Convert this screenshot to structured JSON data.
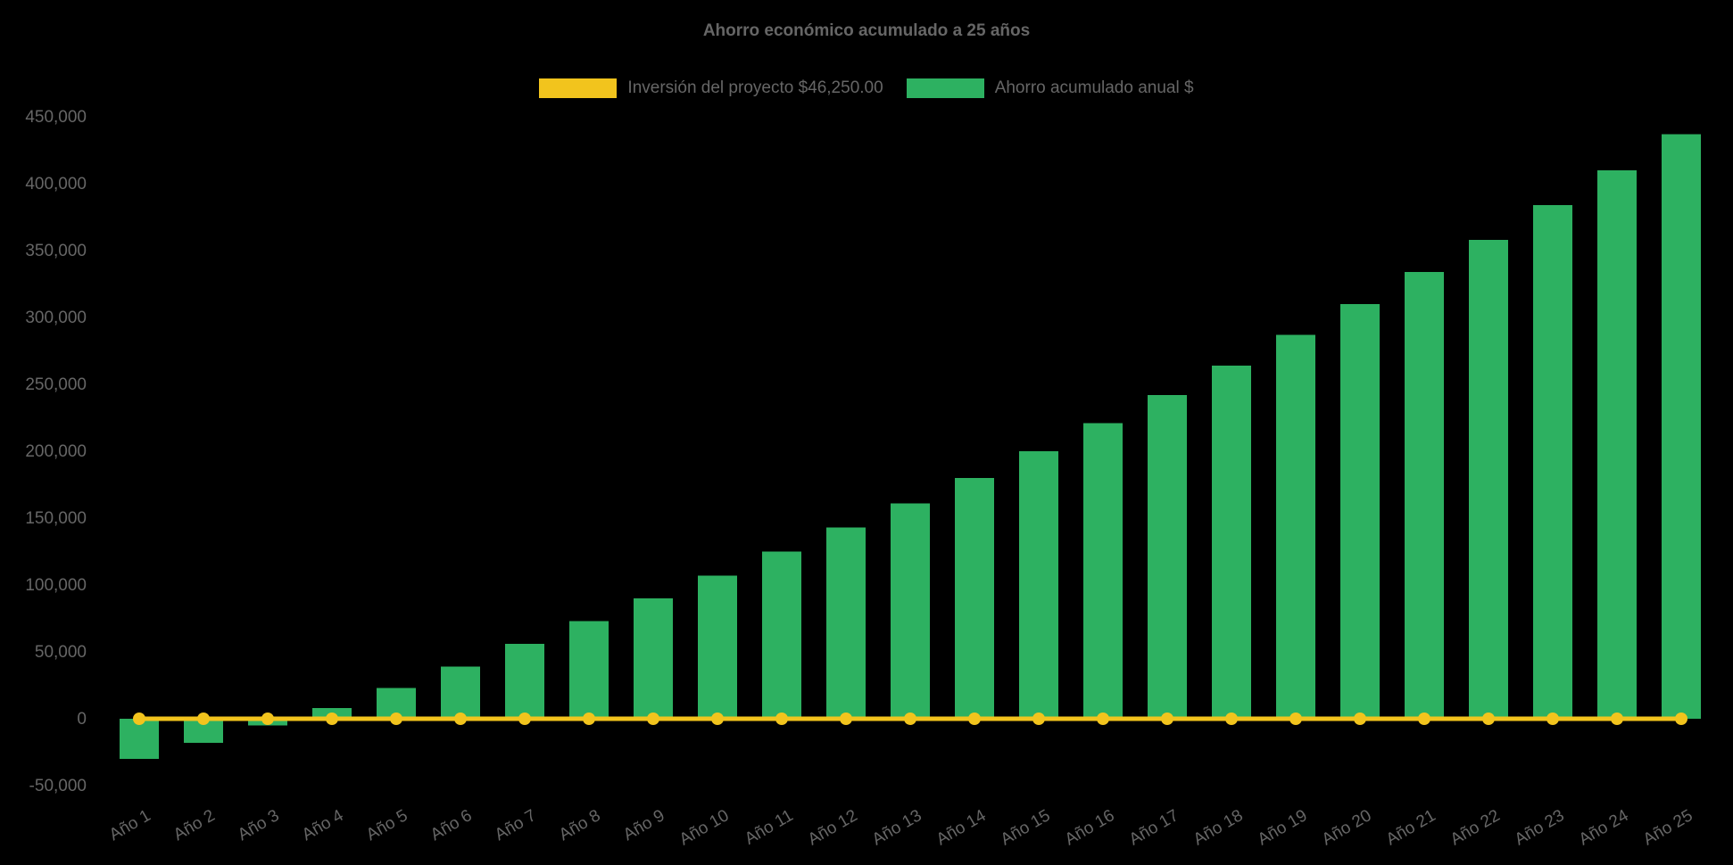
{
  "chart_data": {
    "type": "bar",
    "title": "Ahorro económico acumulado a 25 años",
    "categories": [
      "Año 1",
      "Año 2",
      "Año 3",
      "Año 4",
      "Año 5",
      "Año 6",
      "Año 7",
      "Año 8",
      "Año 9",
      "Año 10",
      "Año 11",
      "Año 12",
      "Año 13",
      "Año 14",
      "Año 15",
      "Año 16",
      "Año 17",
      "Año 18",
      "Año 19",
      "Año 20",
      "Año 21",
      "Año 22",
      "Año 23",
      "Año 24",
      "Año 25"
    ],
    "series": [
      {
        "name": "Inversión del proyecto $46,250.00",
        "type": "line",
        "color": "#F2C41D",
        "values": [
          0,
          0,
          0,
          0,
          0,
          0,
          0,
          0,
          0,
          0,
          0,
          0,
          0,
          0,
          0,
          0,
          0,
          0,
          0,
          0,
          0,
          0,
          0,
          0,
          0
        ]
      },
      {
        "name": "Ahorro acumulado anual $",
        "type": "bar",
        "color": "#2DB161",
        "values": [
          -30000,
          -18000,
          -5000,
          8000,
          23000,
          39000,
          56000,
          73000,
          90000,
          107000,
          125000,
          143000,
          161000,
          180000,
          200000,
          221000,
          242000,
          264000,
          287000,
          310000,
          334000,
          358000,
          384000,
          410000,
          437000
        ]
      }
    ],
    "ylim": [
      -50000,
      450000
    ],
    "ytick_step": 50000,
    "yticks": [
      {
        "value": 450000,
        "label": "450,000"
      },
      {
        "value": 400000,
        "label": "400,000"
      },
      {
        "value": 350000,
        "label": "350,000"
      },
      {
        "value": 300000,
        "label": "300,000"
      },
      {
        "value": 250000,
        "label": "250,000"
      },
      {
        "value": 200000,
        "label": "200,000"
      },
      {
        "value": 150000,
        "label": "150,000"
      },
      {
        "value": 100000,
        "label": "100,000"
      },
      {
        "value": 50000,
        "label": "50,000"
      },
      {
        "value": 0,
        "label": "0"
      },
      {
        "value": -50000,
        "label": "-50,000"
      }
    ],
    "legend_position": "top",
    "grid": false,
    "x_label_rotation_deg": -30,
    "colors": {
      "background": "#000000",
      "text": "#666666",
      "bar": "#2DB161",
      "line": "#F2C41D"
    }
  }
}
